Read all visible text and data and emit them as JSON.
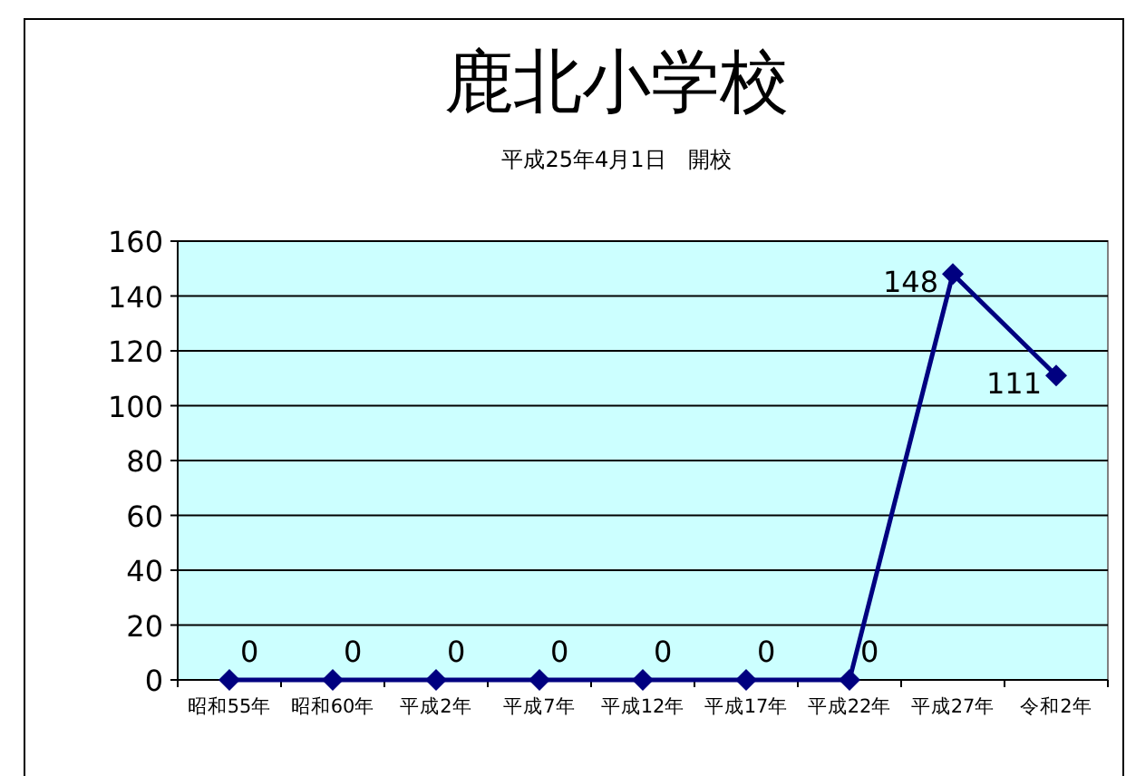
{
  "chart_data": {
    "type": "line",
    "title": "鹿北小学校",
    "subtitle": "平成25年4月1日　開校",
    "categories": [
      "昭和55年",
      "昭和60年",
      "平成2年",
      "平成7年",
      "平成12年",
      "平成17年",
      "平成22年",
      "平成27年",
      "令和2年"
    ],
    "series": [
      {
        "color": "#000080",
        "values": [
          0,
          0,
          0,
          0,
          0,
          0,
          0,
          148,
          111
        ]
      }
    ],
    "ylim": [
      0,
      160
    ],
    "yticks": [
      0,
      20,
      40,
      60,
      80,
      100,
      120,
      140,
      160
    ],
    "grid": "y",
    "marker": "diamond",
    "data_labels": true
  }
}
